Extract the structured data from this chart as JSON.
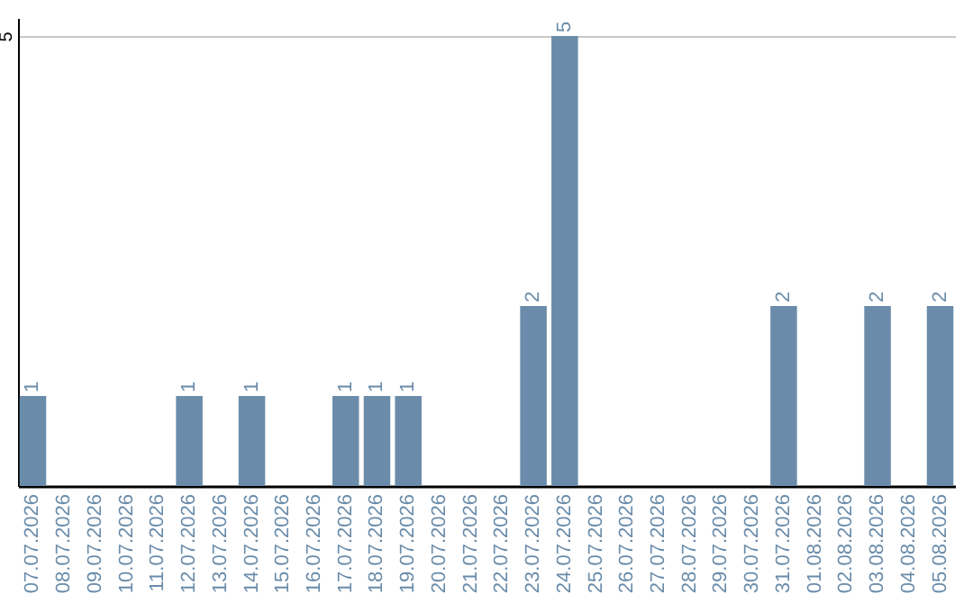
{
  "chart_data": {
    "type": "bar",
    "categories": [
      "07.07.2026",
      "08.07.2026",
      "09.07.2026",
      "10.07.2026",
      "11.07.2026",
      "12.07.2026",
      "13.07.2026",
      "14.07.2026",
      "15.07.2026",
      "16.07.2026",
      "17.07.2026",
      "18.07.2026",
      "19.07.2026",
      "20.07.2026",
      "21.07.2026",
      "22.07.2026",
      "23.07.2026",
      "24.07.2026",
      "25.07.2026",
      "26.07.2026",
      "27.07.2026",
      "28.07.2026",
      "29.07.2026",
      "30.07.2026",
      "31.07.2026",
      "01.08.2026",
      "02.08.2026",
      "03.08.2026",
      "04.08.2026",
      "05.08.2026"
    ],
    "values": [
      1,
      0,
      0,
      0,
      0,
      1,
      0,
      1,
      0,
      0,
      1,
      1,
      1,
      0,
      0,
      0,
      2,
      5,
      0,
      0,
      0,
      0,
      0,
      0,
      2,
      0,
      0,
      2,
      0,
      2
    ],
    "value_labels": [
      "1",
      null,
      null,
      null,
      null,
      "1",
      null,
      "1",
      null,
      null,
      "1",
      "1",
      "1",
      null,
      null,
      null,
      "2",
      "5",
      null,
      null,
      null,
      null,
      null,
      null,
      "2",
      null,
      null,
      "2",
      null,
      "2"
    ],
    "color": "#6a8caa",
    "ylim": [
      0,
      5.2
    ],
    "yticks": [
      5
    ],
    "grid": "y"
  }
}
